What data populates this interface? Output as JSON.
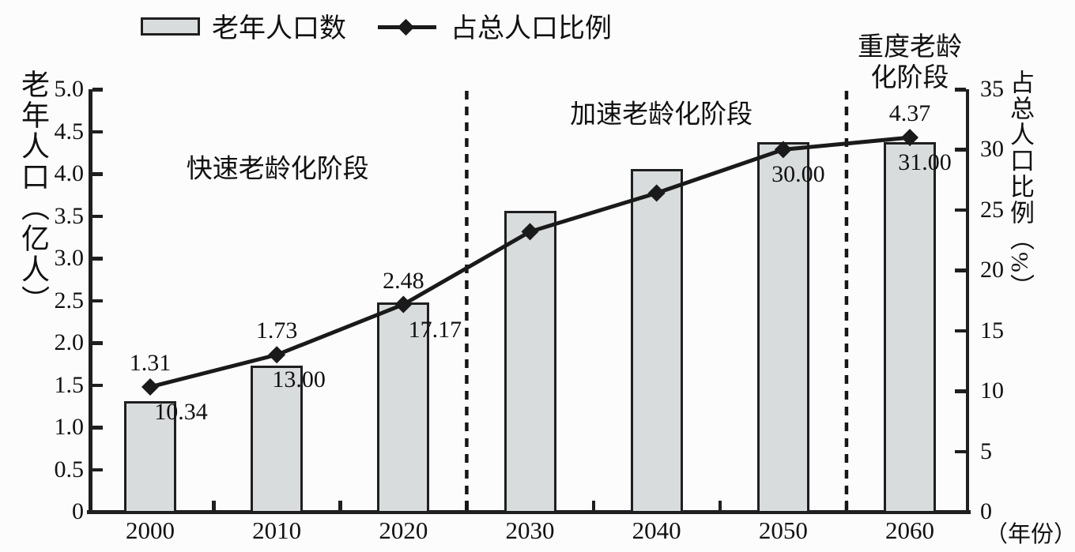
{
  "legend": {
    "bar_item_label": "老年人口数",
    "line_item_label": "占总人口比例"
  },
  "left_axis": {
    "title": "老年人口（亿人）",
    "tick_labels": [
      "5.0",
      "4.5",
      "4.0",
      "3.5",
      "3.0",
      "2.5",
      "2.0",
      "1.5",
      "1.0",
      "0.5",
      "0"
    ]
  },
  "right_axis": {
    "title": "占总人口比例（%）",
    "tick_labels": [
      "35",
      "30",
      "25",
      "20",
      "15",
      "10",
      "5",
      "0"
    ]
  },
  "x_axis": {
    "unit_label": "（年份）",
    "year_labels": [
      "2000",
      "2010",
      "2020",
      "2030",
      "2040",
      "2050",
      "2060"
    ]
  },
  "stages": [
    {
      "label": "快速老龄化阶段"
    },
    {
      "label": "加速老龄化阶段"
    },
    {
      "label": "重度老龄\n化阶段"
    }
  ],
  "colors": {
    "bar_fill": "#d9dcdd",
    "bar_border": "#1f1f1f",
    "line": "#1a1a1a",
    "text": "#111111",
    "background": "#fcfcfc"
  },
  "chart_data": {
    "type": "bar+line",
    "title": "",
    "categories": [
      "2000",
      "2010",
      "2020",
      "2030",
      "2040",
      "2050",
      "2060"
    ],
    "series": [
      {
        "name": "老年人口数",
        "type": "bar",
        "axis": "left",
        "unit": "亿人",
        "values": [
          1.31,
          1.73,
          2.48,
          3.56,
          4.06,
          4.37,
          4.37
        ],
        "point_labels": [
          "1.31",
          "1.73",
          "2.48",
          null,
          null,
          null,
          "4.37"
        ]
      },
      {
        "name": "占总人口比例",
        "type": "line",
        "axis": "right",
        "unit": "%",
        "marker": "diamond",
        "values": [
          10.34,
          13.0,
          17.17,
          23.2,
          26.4,
          30.0,
          31.0
        ],
        "point_labels": [
          "10.34",
          "13.00",
          "17.17",
          null,
          null,
          "30.00",
          "31.00"
        ],
        "pct_label_dx": [
          39,
          28,
          40,
          0,
          0,
          19,
          19
        ]
      }
    ],
    "left_ylim": [
      0,
      5
    ],
    "right_ylim": [
      0,
      35
    ],
    "dividers_between_category_indices": [
      [
        2,
        3
      ],
      [
        5,
        6
      ]
    ],
    "grid": false,
    "legend_position": "top"
  }
}
